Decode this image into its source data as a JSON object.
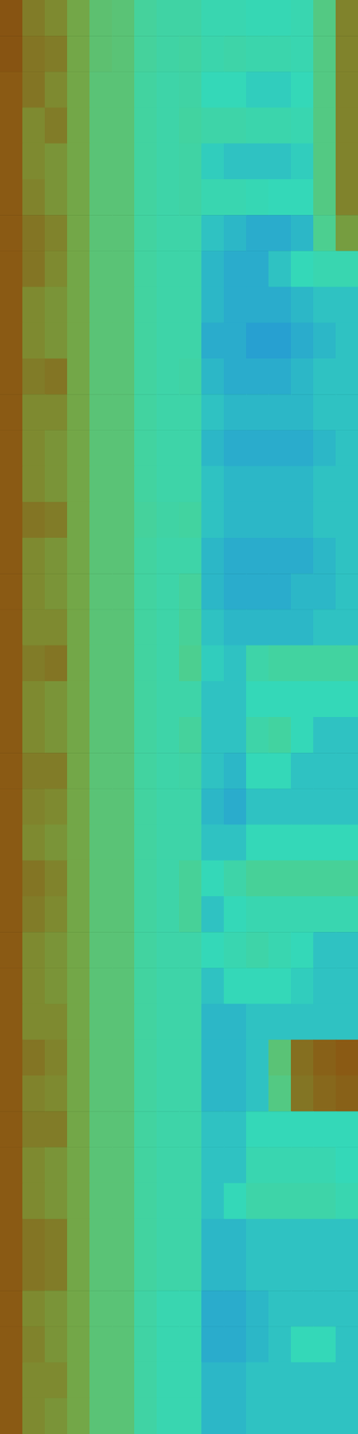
{
  "chart_data": {
    "type": "heatmap",
    "tick_labels": false,
    "zlim": [
      30,
      90
    ],
    "cells": [
      [
        82,
        70,
        66,
        60,
        53,
        52,
        45,
        43,
        43,
        40,
        40,
        39,
        39,
        40,
        50,
        68
      ],
      [
        82,
        72,
        70,
        60,
        53,
        52,
        45,
        43,
        44,
        41,
        42,
        41,
        41,
        40,
        50,
        68
      ],
      [
        80,
        72,
        66,
        60,
        52,
        52,
        44,
        42,
        43,
        38,
        38,
        37,
        37,
        38,
        50,
        68
      ],
      [
        80,
        66,
        70,
        60,
        52,
        52,
        44,
        42,
        44,
        42,
        42,
        41,
        41,
        40,
        50,
        68
      ],
      [
        80,
        66,
        64,
        60,
        52,
        52,
        44,
        42,
        43,
        37,
        36,
        36,
        36,
        37,
        50,
        68
      ],
      [
        80,
        68,
        64,
        60,
        52,
        52,
        44,
        42,
        43,
        40,
        40,
        39,
        38,
        38,
        50,
        68
      ],
      [
        80,
        72,
        68,
        60,
        52,
        52,
        44,
        42,
        42,
        36,
        35,
        34,
        34,
        35,
        48,
        62
      ],
      [
        80,
        72,
        66,
        60,
        52,
        52,
        44,
        42,
        42,
        35,
        34,
        34,
        36,
        38,
        40,
        40
      ],
      [
        80,
        66,
        64,
        60,
        52,
        52,
        44,
        42,
        42,
        35,
        34,
        34,
        34,
        35,
        36,
        36
      ],
      [
        80,
        66,
        64,
        60,
        52,
        52,
        44,
        42,
        42,
        34,
        34,
        33,
        33,
        34,
        35,
        36
      ],
      [
        80,
        70,
        72,
        60,
        52,
        52,
        44,
        42,
        43,
        35,
        34,
        34,
        34,
        35,
        36,
        36
      ],
      [
        80,
        66,
        66,
        60,
        52,
        52,
        44,
        42,
        42,
        36,
        35,
        35,
        35,
        35,
        36,
        36
      ],
      [
        80,
        66,
        64,
        60,
        52,
        52,
        44,
        42,
        42,
        35,
        34,
        34,
        34,
        34,
        35,
        36
      ],
      [
        80,
        66,
        64,
        60,
        52,
        52,
        44,
        42,
        42,
        36,
        35,
        35,
        35,
        35,
        36,
        36
      ],
      [
        80,
        72,
        70,
        60,
        52,
        52,
        45,
        43,
        44,
        36,
        35,
        35,
        35,
        35,
        36,
        36
      ],
      [
        80,
        66,
        64,
        60,
        52,
        52,
        44,
        42,
        42,
        35,
        34,
        34,
        34,
        34,
        35,
        36
      ],
      [
        80,
        66,
        64,
        60,
        52,
        52,
        44,
        42,
        45,
        35,
        34,
        34,
        34,
        35,
        35,
        36
      ],
      [
        80,
        66,
        66,
        60,
        52,
        52,
        44,
        42,
        46,
        36,
        35,
        35,
        35,
        35,
        36,
        36
      ],
      [
        80,
        70,
        72,
        60,
        52,
        52,
        44,
        42,
        48,
        37,
        36,
        42,
        44,
        44,
        44,
        44
      ],
      [
        80,
        66,
        64,
        60,
        52,
        52,
        44,
        42,
        42,
        36,
        36,
        38,
        38,
        38,
        38,
        38
      ],
      [
        80,
        66,
        64,
        60,
        52,
        52,
        44,
        42,
        45,
        36,
        36,
        42,
        44,
        38,
        36,
        36
      ],
      [
        80,
        70,
        70,
        60,
        52,
        52,
        44,
        42,
        43,
        36,
        35,
        38,
        38,
        36,
        36,
        36
      ],
      [
        80,
        68,
        66,
        60,
        52,
        52,
        44,
        42,
        42,
        35,
        34,
        36,
        36,
        36,
        36,
        36
      ],
      [
        80,
        66,
        64,
        60,
        52,
        52,
        44,
        42,
        42,
        36,
        36,
        38,
        38,
        38,
        38,
        38
      ],
      [
        80,
        72,
        68,
        60,
        52,
        52,
        44,
        42,
        46,
        38,
        42,
        46,
        46,
        46,
        46,
        46
      ],
      [
        80,
        70,
        66,
        60,
        52,
        52,
        44,
        42,
        46,
        36,
        38,
        40,
        40,
        40,
        40,
        40
      ],
      [
        80,
        66,
        64,
        60,
        52,
        52,
        44,
        42,
        42,
        38,
        40,
        42,
        40,
        38,
        36,
        36
      ],
      [
        80,
        66,
        64,
        60,
        52,
        52,
        44,
        42,
        42,
        36,
        38,
        38,
        38,
        37,
        36,
        36
      ],
      [
        80,
        66,
        66,
        60,
        52,
        52,
        44,
        42,
        42,
        35,
        35,
        36,
        36,
        36,
        36,
        36
      ],
      [
        80,
        72,
        68,
        60,
        52,
        52,
        44,
        42,
        42,
        35,
        35,
        36,
        52,
        74,
        78,
        80
      ],
      [
        80,
        68,
        66,
        60,
        52,
        52,
        44,
        42,
        42,
        35,
        35,
        36,
        50,
        72,
        76,
        78
      ],
      [
        80,
        70,
        70,
        60,
        52,
        52,
        44,
        42,
        42,
        36,
        36,
        38,
        38,
        38,
        38,
        38
      ],
      [
        80,
        66,
        64,
        60,
        52,
        52,
        44,
        42,
        42,
        36,
        36,
        40,
        40,
        40,
        40,
        38
      ],
      [
        80,
        66,
        64,
        60,
        52,
        52,
        44,
        42,
        42,
        36,
        38,
        42,
        42,
        42,
        42,
        40
      ],
      [
        80,
        72,
        70,
        60,
        52,
        52,
        44,
        42,
        42,
        35,
        35,
        36,
        36,
        36,
        36,
        36
      ],
      [
        80,
        72,
        70,
        60,
        52,
        52,
        44,
        42,
        42,
        35,
        35,
        36,
        36,
        36,
        36,
        36
      ],
      [
        80,
        66,
        64,
        60,
        52,
        52,
        43,
        40,
        40,
        34,
        34,
        35,
        36,
        36,
        36,
        36
      ],
      [
        80,
        68,
        64,
        60,
        52,
        52,
        43,
        40,
        40,
        34,
        34,
        35,
        36,
        38,
        38,
        36
      ],
      [
        80,
        66,
        66,
        60,
        52,
        52,
        43,
        40,
        40,
        35,
        35,
        36,
        36,
        36,
        36,
        36
      ],
      [
        80,
        66,
        64,
        60,
        52,
        52,
        43,
        40,
        40,
        35,
        35,
        36,
        36,
        36,
        36,
        36
      ]
    ]
  }
}
